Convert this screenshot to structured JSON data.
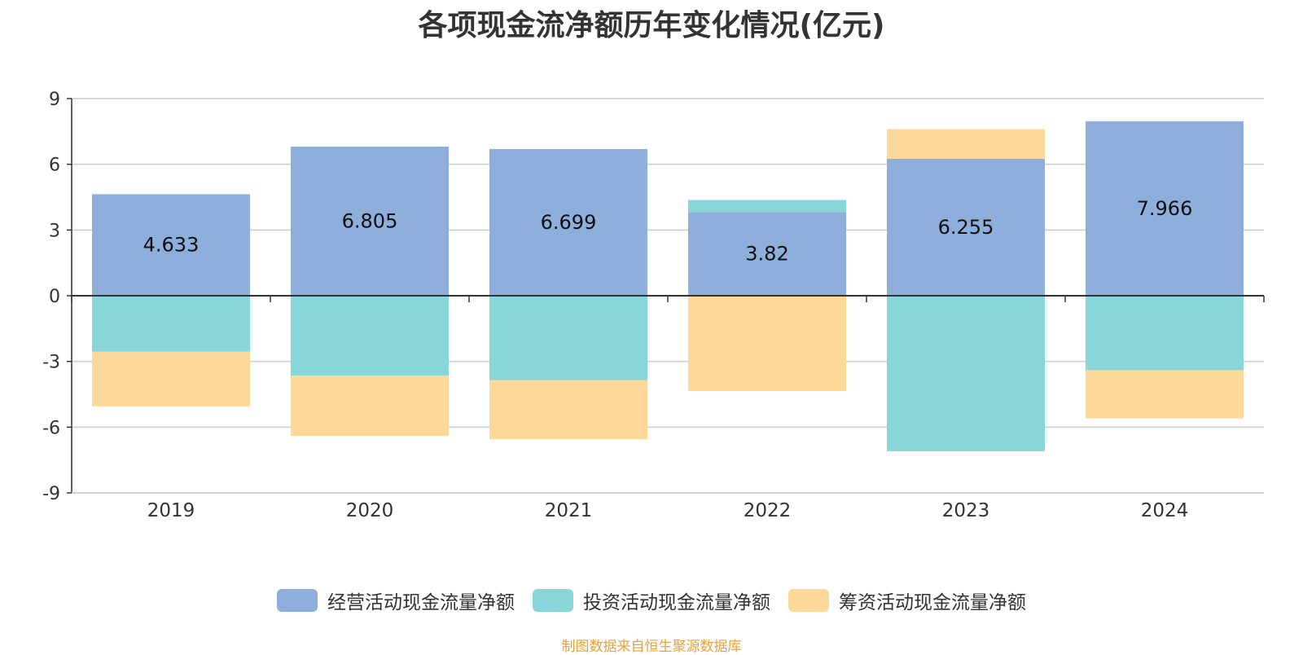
{
  "chart_data": {
    "type": "bar",
    "stacked": true,
    "title": "各项现金流净额历年变化情况(亿元)",
    "categories": [
      "2019",
      "2020",
      "2021",
      "2022",
      "2023",
      "2024"
    ],
    "ylim": [
      -9,
      9
    ],
    "yticks": [
      "9",
      "6",
      "3",
      "0",
      "-3",
      "-6",
      "-9"
    ],
    "grid": true,
    "legend_position": "bottom",
    "series": [
      {
        "name": "经营活动现金流量净额",
        "color": "#8eaedb",
        "values": [
          4.633,
          6.805,
          6.699,
          3.82,
          6.255,
          7.966
        ],
        "labels": [
          "4.633",
          "6.805",
          "6.699",
          "3.82",
          "6.255",
          "7.966"
        ]
      },
      {
        "name": "投资活动现金流量净额",
        "color": "#88d6d9",
        "values": [
          -2.55,
          -3.65,
          -3.85,
          0.55,
          -7.1,
          -3.4
        ]
      },
      {
        "name": "筹资活动现金流量净额",
        "color": "#fed898",
        "values": [
          -2.5,
          -2.75,
          -2.7,
          -4.35,
          1.35,
          -2.2
        ]
      }
    ]
  },
  "source": "制图数据来自恒生聚源数据库"
}
